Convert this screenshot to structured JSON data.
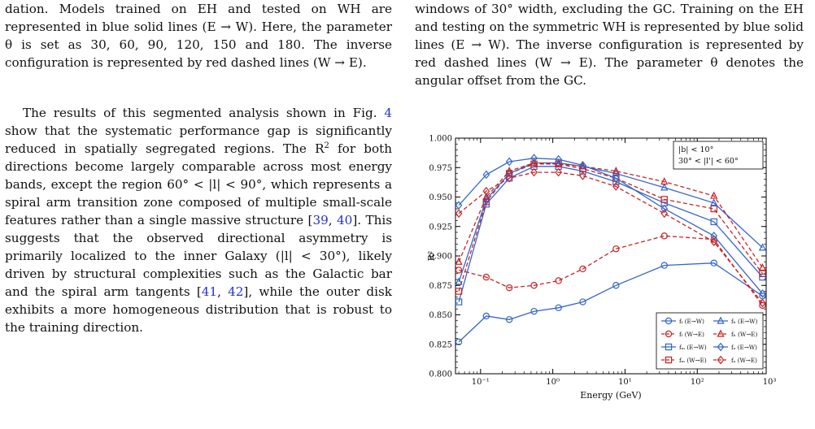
{
  "left_col": {
    "p1": "dation. Models trained on EH and tested on WH are represented in blue solid lines (E → W). Here, the parameter θ is set as 30, 60, 90, 120, 150 and 180. The inverse configuration is represented by red dashed lines (W → E).",
    "p2_a": "The results of this segmented analysis shown in Fig. ",
    "p2_ref1": "4",
    "p2_b": " show that the systematic performance gap is significantly reduced in spatially segregated regions. The R",
    "p2_sup": "2",
    "p2_c": " for both directions become largely comparable across most energy bands, except the region 60° < |l| < 90°, which represents a spiral arm transition zone composed of multiple small-scale features rather than a single massive structure [",
    "p2_ref2": "39",
    "p2_sep1": ", ",
    "p2_ref3": "40",
    "p2_d": "]. This suggests that the observed directional asymmetry is primarily localized to the inner Galaxy (|l| < 30°), likely driven by structural complexities such as the Galactic bar and the spiral arm tangents [",
    "p2_ref4": "41",
    "p2_sep2": ", ",
    "p2_ref5": "42",
    "p2_e": "], while the outer disk exhibits a more homogeneous distribution that is robust to the training direction."
  },
  "right_col": {
    "p1": "windows of 30° width, excluding the GC. Training on the EH and testing on the symmetric WH is represented by blue solid lines (E → W). The inverse configuration is represented by red dashed lines (W → E). The parameter θ denotes the angular offset from the GC."
  },
  "chart_data": {
    "type": "line",
    "xlabel": "Energy (GeV)",
    "ylabel": "R²",
    "x_scale": "log",
    "xlim": [
      0.045,
      900
    ],
    "ylim": [
      0.8,
      1.0
    ],
    "yticks": [
      "0.800",
      "0.825",
      "0.850",
      "0.875",
      "0.900",
      "0.925",
      "0.950",
      "0.975",
      "1.000"
    ],
    "xtick_labels": [
      "10⁻¹",
      "10⁰",
      "10¹",
      "10²",
      "10³"
    ],
    "annotation": [
      "|b| < 10°",
      "30° < |l'| < 60°"
    ],
    "legend_position": "lower-right",
    "grid": false,
    "x": [
      0.05,
      0.12,
      0.25,
      0.55,
      1.2,
      2.6,
      7.5,
      35,
      170,
      800
    ],
    "series": [
      {
        "name": "fₗ (E→W)",
        "color": "#3366cc",
        "dash": false,
        "marker": "circle",
        "values": [
          0.827,
          0.849,
          0.846,
          0.853,
          0.856,
          0.861,
          0.875,
          0.892,
          0.894,
          0.866
        ]
      },
      {
        "name": "fₗ (W→E)",
        "color": "#cc2222",
        "dash": true,
        "marker": "circle",
        "values": [
          0.888,
          0.882,
          0.873,
          0.875,
          0.879,
          0.889,
          0.906,
          0.917,
          0.914,
          0.858
        ]
      },
      {
        "name": "fₘ (E→W)",
        "color": "#3366cc",
        "dash": false,
        "marker": "square",
        "values": [
          0.861,
          0.944,
          0.966,
          0.976,
          0.976,
          0.972,
          0.963,
          0.945,
          0.929,
          0.882
        ]
      },
      {
        "name": "fₘ (W→E)",
        "color": "#cc2222",
        "dash": true,
        "marker": "square",
        "values": [
          0.87,
          0.946,
          0.97,
          0.978,
          0.978,
          0.974,
          0.966,
          0.948,
          0.94,
          0.885
        ]
      },
      {
        "name": "fₕ (E→W)",
        "color": "#3366cc",
        "dash": false,
        "marker": "triangle",
        "values": [
          0.878,
          0.948,
          0.97,
          0.979,
          0.979,
          0.976,
          0.97,
          0.958,
          0.945,
          0.907
        ]
      },
      {
        "name": "fₕ (W→E)",
        "color": "#cc2222",
        "dash": true,
        "marker": "triangle",
        "values": [
          0.895,
          0.95,
          0.972,
          0.979,
          0.978,
          0.976,
          0.972,
          0.963,
          0.951,
          0.89
        ]
      },
      {
        "name": "fₐ (E→W)",
        "color": "#3366cc",
        "dash": false,
        "marker": "diamond",
        "values": [
          0.943,
          0.969,
          0.98,
          0.983,
          0.982,
          0.977,
          0.966,
          0.94,
          0.917,
          0.868
        ]
      },
      {
        "name": "fₐ (W→E)",
        "color": "#cc2222",
        "dash": true,
        "marker": "diamond",
        "values": [
          0.936,
          0.955,
          0.966,
          0.971,
          0.971,
          0.968,
          0.959,
          0.936,
          0.912,
          0.86
        ]
      }
    ]
  }
}
